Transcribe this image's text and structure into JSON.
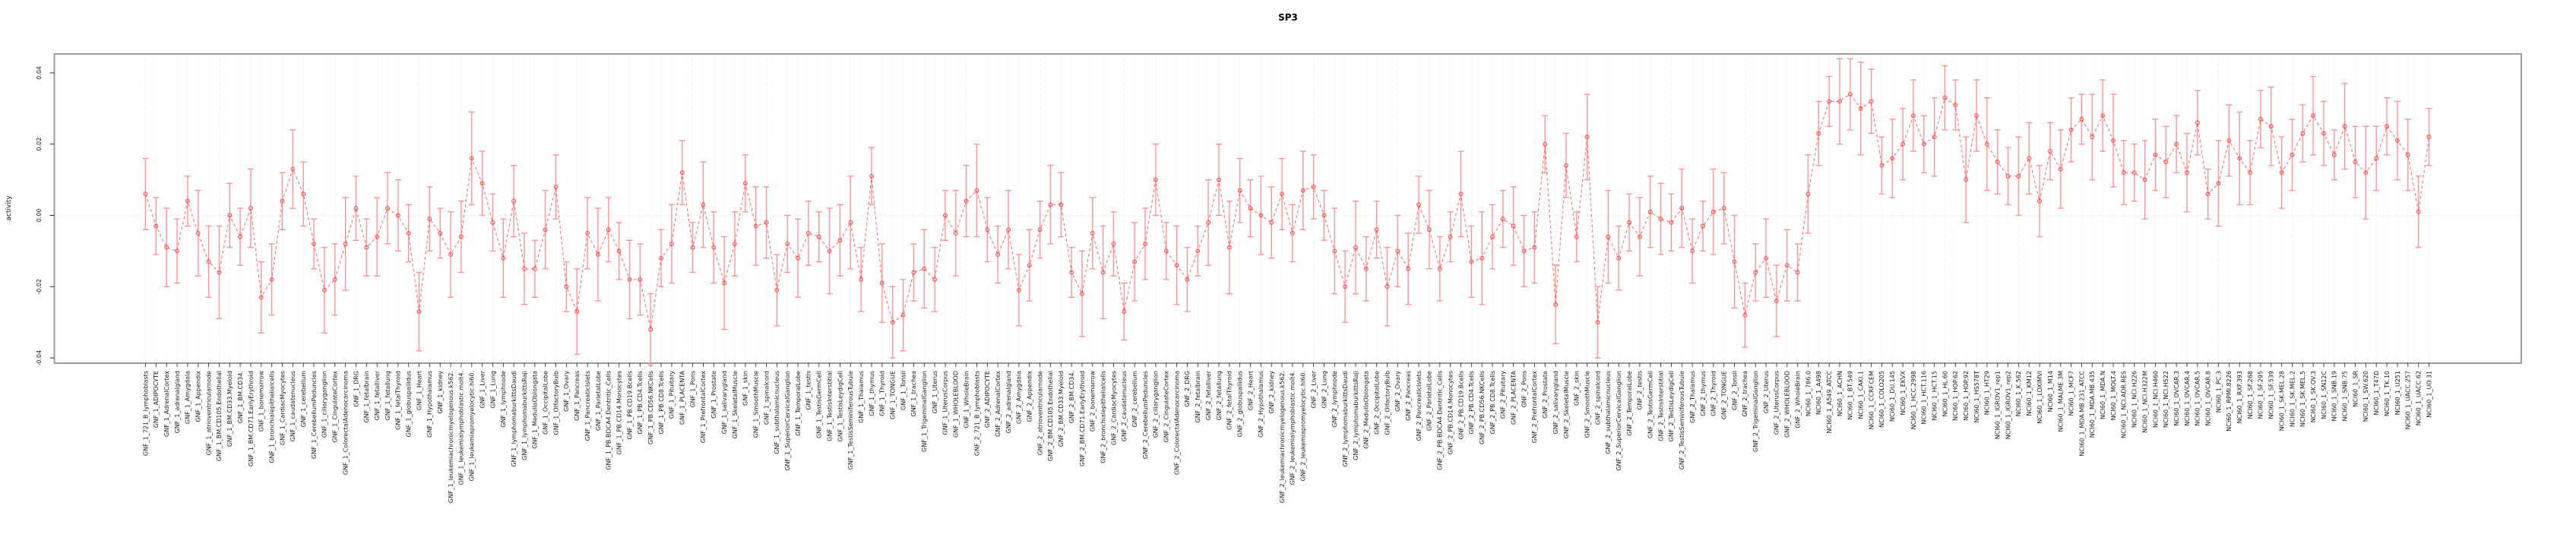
{
  "chart_data": {
    "type": "line",
    "title": "SP3",
    "ylabel": "activity",
    "xlabel": "",
    "ylim": [
      -0.0415,
      0.0453
    ],
    "ytick_values": [
      0.04,
      0.02,
      0.0,
      -0.02,
      -0.04
    ],
    "ytick_labels": [
      "0.04",
      "0.02",
      "0.00",
      "-0.02",
      "-0.04"
    ],
    "grid": {
      "vertical_dotted_per_category": true,
      "zero_line_dotted": true
    },
    "legend": "none",
    "point_style": "open-circle",
    "line_style": "dashed",
    "error_bars": true,
    "colors": {
      "point": "#f84f4f",
      "line": "#f95a5a",
      "error_bar": "#fb9595",
      "grid": "#dcdcdc",
      "zero_line": "#d0d0d0",
      "box_border": "#9c9c9c",
      "tick": "#333333",
      "text": "#1a1a1a",
      "title": "#000000"
    },
    "groups": [
      {
        "prefix": "GNF_1_",
        "names": [
          "721_B_lymphoblasts",
          "ADIPOCYTE",
          "AdrenalCortex",
          "adrenalgland",
          "Amygdala",
          "Appendix",
          "atrioventricularnode",
          "BM.CD105.Endothelial",
          "BM.CD33.Myeloid",
          "BM.CD34.",
          "BM.CD71.EarlyErythroid",
          "bonemarrow",
          "bronchialepithelialcells",
          "CardiacMyocytes",
          "caudatenucleus",
          "cerebellum",
          "CerebellumPeduncles",
          "ciliaryganglion",
          "CingulateCortex",
          "ColorectalAdenocarcinoma",
          "DRG",
          "fetalbrain",
          "fetalliver",
          "fetallung",
          "fetalThyroid",
          "globuspallidus",
          "Heart",
          "Hypothalamus",
          "kidney",
          "leukemiachronicmyelogenous.k562.",
          "leukemialymphoblastic.molt4.",
          "leukemiapromyelocytic.hl60.",
          "Liver",
          "Lung",
          "lymphnode",
          "lymphomaburkittsDaudi",
          "lymphomaburkittsRaji",
          "MedullaOblongata",
          "OccipitalLobe",
          "OlfactoryBulb",
          "Ovary",
          "Pancreas",
          "PancreaticIslets",
          "ParietalLobe",
          "PB.BDCA4.Dentritic_Cells",
          "PB.CD14.Monocytes",
          "PB.CD19.Bcells",
          "PB.CD4.Tcells",
          "PB.CD56.NKCells",
          "PB.CD8.Tcells",
          "Pituitary",
          "PLACENTA",
          "Pons",
          "PrefrontalCortex",
          "Prostate",
          "salivarygland",
          "SkeletalMuscle",
          "skin",
          "SmoothMuscle",
          "spinalcord",
          "subthalamicnucleus",
          "SuperiorCervicalGanglion",
          "TemporalLobe",
          "testis",
          "TestisGermCell",
          "TestisInterstitial",
          "TestisLeydigCell",
          "TestisSeminiferousTubule",
          "Thalamus",
          "thymus",
          "Thyroid",
          "TONGUE",
          "Tonsil",
          "trachea",
          "TrigeminalGanglion",
          "Uterus",
          "UterusCorpus",
          "WHOLEBLOOD",
          "WholeBrain"
        ]
      },
      {
        "prefix": "GNF_2_",
        "names": [
          "721_B_lymphoblasts",
          "ADIPOCYTE",
          "AdrenalCortex",
          "adrenalgland",
          "Amygdala",
          "Appendix",
          "atrioventricularnode",
          "BM.CD105.Endothelial",
          "BM.CD33.Myeloid",
          "BM.CD34.",
          "BM.CD71.EarlyErythroid",
          "bonemarrow",
          "bronchialepithelialcells",
          "CardiacMyocytes",
          "caudatenucleus",
          "cerebellum",
          "CerebellumPeduncles",
          "ciliaryganglion",
          "CingulateCortex",
          "ColorectalAdenocarcinoma",
          "DRG",
          "fetalbrain",
          "fetalliver",
          "fetallung",
          "fetalThyroid",
          "globuspallidus",
          "Heart",
          "Hypothalamus",
          "kidney",
          "leukemiachronicmyelogenous.k562.",
          "leukemialymphoblastic.molt4.",
          "leukemiapromyelocytic.hl60.",
          "Liver",
          "Lung",
          "lymphnode",
          "lymphomaburkittsDaudi",
          "lymphomaburkittsRaji",
          "MedullaOblongata",
          "OccipitalLobe",
          "OlfactoryBulb",
          "Ovary",
          "Pancreas",
          "PancreaticIslets",
          "ParietalLobe",
          "PB.BDCA4.Dentritic_Cells",
          "PB.CD14.Monocytes",
          "PB.CD19.Bcells",
          "PB.CD4.Tcells",
          "PB.CD56.NKCells",
          "PB.CD8.Tcells",
          "Pituitary",
          "PLACENTA",
          "Pons",
          "PrefrontalCortex",
          "Prostate",
          "salivarygland",
          "SkeletalMuscle",
          "skin",
          "SmoothMuscle",
          "spinalcord",
          "subthalamicnucleus",
          "SuperiorCervicalGanglion",
          "TemporalLobe",
          "testis",
          "TestisGermCell",
          "TestisInterstitial",
          "TestisLeydigCell",
          "TestisSeminiferousTubule",
          "Thalamus",
          "thymus",
          "Thyroid",
          "TONGUE",
          "Tonsil",
          "trachea",
          "TrigeminalGanglion",
          "Uterus",
          "UterusCorpus",
          "WHOLEBLOOD",
          "WholeBrain"
        ]
      },
      {
        "prefix": "NCI60_1_",
        "names": [
          "786.0",
          "A498",
          "A549_ATCC",
          "ACHN",
          "BT.549",
          "CAKI.1",
          "CCRF.CEM",
          "COLO205",
          "DU.145",
          "EKVX",
          "HCC.2998",
          "HCT.116",
          "HCT.15",
          "HL.60",
          "HOP.62",
          "HOP.92",
          "HS578T",
          "HT29",
          "IGROV1_rep1",
          "IGROV1_rep2",
          "K.562",
          "KM12",
          "LOXIMVI",
          "M14",
          "MALME.3M",
          "MCF7",
          "MDA.MB.231_ATCC",
          "MDA.MB.435",
          "MDA.N",
          "MOLT.4",
          "NCI.ADR.RES",
          "NCI.H226",
          "NCI.H322M",
          "NCI.H460",
          "NCI.H522",
          "OVCAR.3",
          "OVCAR.4",
          "OVCAR.5",
          "OVCAR.8",
          "PC.3",
          "RPMI.8226",
          "RXF.393",
          "SF.268",
          "SF.295",
          "SF.539",
          "SK.MEL.28",
          "SK.MEL.2",
          "SK.MEL.5",
          "SK.OV.3",
          "SN12C",
          "SNB.19",
          "SNB.75",
          "SR",
          "SW.620",
          "T47D",
          "TK.10",
          "U251",
          "UACC.257",
          "UACC.62",
          "UO.31"
        ]
      }
    ],
    "values": [
      0.006,
      -0.003,
      -0.009,
      -0.01,
      0.004,
      -0.005,
      -0.013,
      -0.016,
      0.0,
      -0.006,
      0.002,
      -0.023,
      -0.018,
      0.004,
      0.013,
      0.006,
      -0.008,
      -0.021,
      -0.018,
      -0.008,
      0.002,
      -0.009,
      -0.006,
      0.002,
      0.0,
      -0.005,
      -0.027,
      -0.001,
      -0.005,
      -0.011,
      -0.006,
      0.016,
      0.009,
      -0.002,
      -0.012,
      0.004,
      -0.015,
      -0.015,
      -0.004,
      0.008,
      -0.02,
      -0.027,
      -0.005,
      -0.011,
      -0.004,
      -0.01,
      -0.018,
      -0.018,
      -0.032,
      -0.012,
      -0.008,
      0.012,
      -0.009,
      0.003,
      -0.009,
      -0.019,
      -0.008,
      0.009,
      -0.003,
      -0.002,
      -0.021,
      -0.008,
      -0.012,
      -0.005,
      -0.006,
      -0.01,
      -0.007,
      -0.002,
      -0.018,
      0.011,
      -0.019,
      -0.03,
      -0.028,
      -0.016,
      -0.015,
      -0.018,
      0.0,
      -0.005,
      0.004,
      0.007,
      -0.004,
      -0.011,
      -0.004,
      -0.021,
      -0.014,
      -0.004,
      0.003,
      0.003,
      -0.016,
      -0.022,
      -0.005,
      -0.016,
      -0.008,
      -0.027,
      -0.013,
      -0.008,
      0.01,
      -0.01,
      -0.014,
      -0.018,
      -0.01,
      -0.002,
      0.01,
      -0.009,
      0.007,
      0.002,
      0.0,
      -0.002,
      0.006,
      -0.005,
      0.007,
      0.008,
      0.0,
      -0.01,
      -0.02,
      -0.009,
      -0.015,
      -0.004,
      -0.02,
      -0.01,
      -0.015,
      0.003,
      -0.004,
      -0.015,
      -0.006,
      0.006,
      -0.013,
      -0.012,
      -0.006,
      -0.001,
      -0.003,
      -0.01,
      -0.009,
      0.02,
      -0.025,
      0.014,
      -0.006,
      0.022,
      -0.03,
      -0.006,
      -0.012,
      -0.002,
      -0.006,
      0.001,
      -0.001,
      -0.002,
      0.002,
      -0.01,
      -0.003,
      0.001,
      0.002,
      -0.013,
      -0.028,
      -0.016,
      -0.012,
      -0.024,
      -0.014,
      -0.016,
      0.006,
      0.023,
      0.032,
      0.032,
      0.034,
      0.03,
      0.032,
      0.014,
      0.016,
      0.02,
      0.028,
      0.02,
      0.022,
      0.033,
      0.031,
      0.01,
      0.028,
      0.02,
      0.015,
      0.011,
      0.011,
      0.016,
      0.004,
      0.018,
      0.013,
      0.024,
      0.027,
      0.022,
      0.028,
      0.021,
      0.012,
      0.012,
      0.01,
      0.017,
      0.015,
      0.02,
      0.012,
      0.026,
      0.006,
      0.009,
      0.021,
      0.016,
      0.012,
      0.027,
      0.025,
      0.012,
      0.017,
      0.023,
      0.028,
      0.023,
      0.017,
      0.025,
      0.015,
      0.012,
      0.016,
      0.025,
      0.021,
      0.017,
      0.001,
      0.022
    ],
    "errors_cycle": [
      0.01,
      0.008,
      0.011,
      0.009,
      0.007,
      0.012,
      0.01,
      0.013,
      0.009,
      0.008,
      0.011,
      0.01
    ]
  }
}
